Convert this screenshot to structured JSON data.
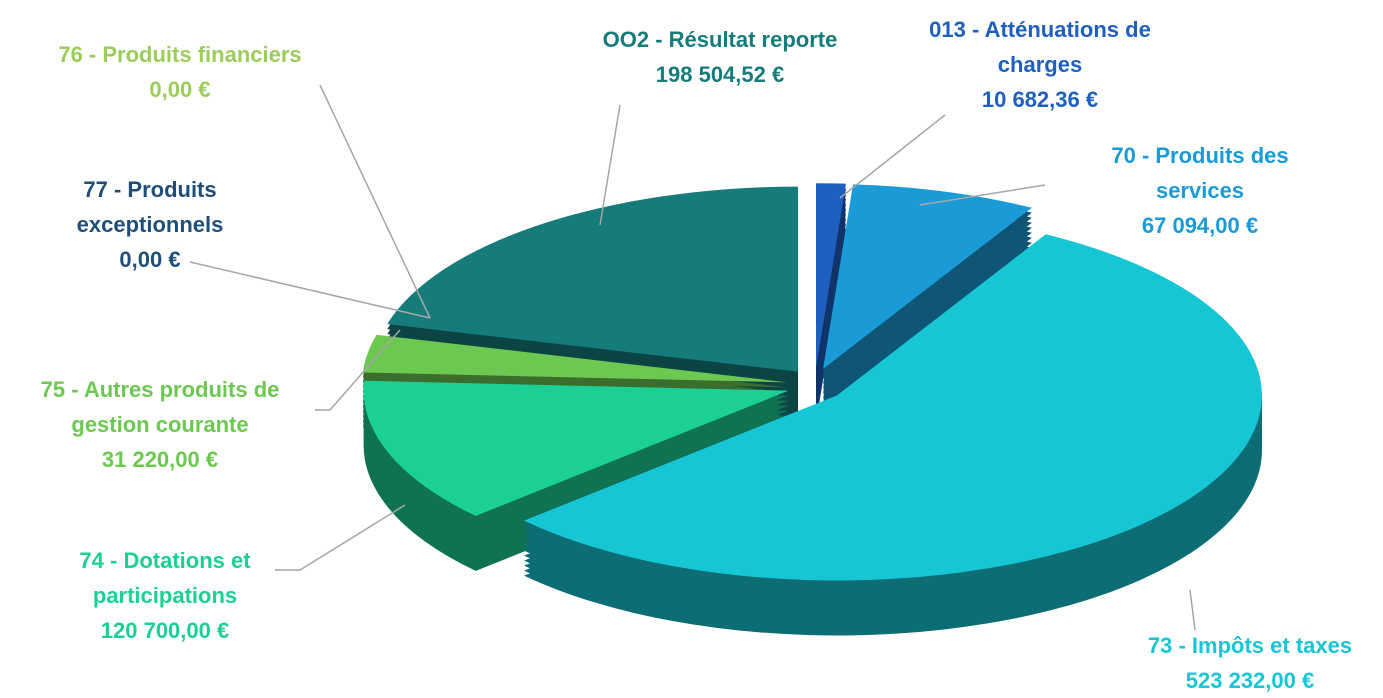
{
  "chart_data": {
    "type": "pie3d",
    "categories": [
      "013 - Atténuations de charges",
      "70 - Produits des services",
      "73 - Impôts et taxes",
      "74 - Dotations et participations",
      "75 - Autres produits de gestion courante",
      "77 - Produits exceptionnels",
      "76 - Produits financiers",
      "OO2 - Résultat reporte"
    ],
    "values": [
      10682.36,
      67094,
      523232,
      120700,
      31220,
      0,
      0,
      198504.52
    ],
    "value_labels": [
      "10 682,36 €",
      "67 094,00 €",
      "523 232,00 €",
      "120 700,00 €",
      "31 220,00 €",
      "0,00 €",
      "0,00 €",
      "198 504,52 €"
    ],
    "colors": [
      "#1f5fbf",
      "#1a9ad6",
      "#17c6d4",
      "#1ccf95",
      "#6cc850",
      "#1f4e79",
      "#9ccc5a",
      "#167b7b"
    ]
  }
}
